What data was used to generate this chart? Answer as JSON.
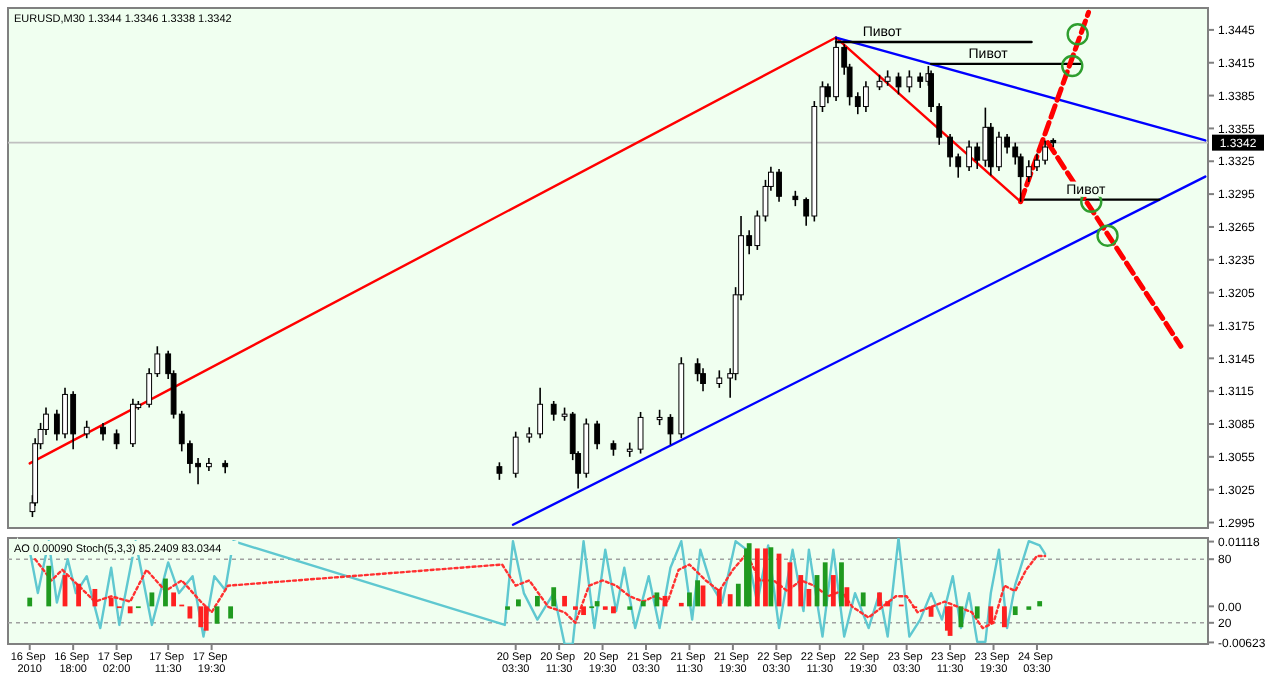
{
  "chart_data": [
    {
      "type": "candlestick",
      "title": "EURUSD,M30  1.3344 1.3346 1.3338 1.3342",
      "tick_labels": "y",
      "xlim": [
        "2010-09-16T06:00",
        "2010-09-25T11:00"
      ],
      "ylim": [
        1.299,
        1.3465
      ],
      "yticks": [
        1.2995,
        1.3025,
        1.3055,
        1.3085,
        1.3115,
        1.3145,
        1.3175,
        1.3205,
        1.3235,
        1.3265,
        1.3295,
        1.3325,
        1.3355,
        1.3385,
        1.3415,
        1.3445
      ],
      "x": [
        "2010-09-16T10:30",
        "2010-09-16T11:00",
        "2010-09-16T12:00",
        "2010-09-16T13:00",
        "2010-09-16T15:00",
        "2010-09-16T16:30",
        "2010-09-16T18:00",
        "2010-09-16T20:30",
        "2010-09-16T23:30",
        "2010-09-17T02:00",
        "2010-09-17T05:00",
        "2010-09-17T06:00",
        "2010-09-17T08:00",
        "2010-09-17T09:30",
        "2010-09-17T11:30",
        "2010-09-17T12:30",
        "2010-09-17T14:00",
        "2010-09-17T15:30",
        "2010-09-17T17:00",
        "2010-09-17T19:00",
        "2010-09-17T22:00",
        "2010-09-20T00:30",
        "2010-09-20T03:30",
        "2010-09-20T06:00",
        "2010-09-20T08:00",
        "2010-09-20T10:30",
        "2010-09-20T12:30",
        "2010-09-20T14:00",
        "2010-09-20T15:00",
        "2010-09-20T16:30",
        "2010-09-20T18:30",
        "2010-09-20T21:30",
        "2010-09-21T00:30",
        "2010-09-21T02:30",
        "2010-09-21T06:00",
        "2010-09-21T08:00",
        "2010-09-21T10:00",
        "2010-09-21T13:00",
        "2010-09-21T14:00",
        "2010-09-21T17:00",
        "2010-09-21T19:00",
        "2010-09-21T20:00",
        "2010-09-21T21:00",
        "2010-09-21T22:30",
        "2010-09-22T00:00",
        "2010-09-22T01:30",
        "2010-09-22T02:30",
        "2010-09-22T04:00",
        "2010-09-22T07:00",
        "2010-09-22T09:00",
        "2010-09-22T10:30",
        "2010-09-22T12:00",
        "2010-09-22T13:00",
        "2010-09-22T14:30",
        "2010-09-22T16:00",
        "2010-09-22T17:00",
        "2010-09-22T18:30",
        "2010-09-22T20:00",
        "2010-09-22T22:30",
        "2010-09-23T00:00",
        "2010-09-23T02:00",
        "2010-09-23T04:00",
        "2010-09-23T06:00",
        "2010-09-23T07:30",
        "2010-09-23T08:00",
        "2010-09-23T09:30",
        "2010-09-23T11:30",
        "2010-09-23T13:00",
        "2010-09-23T15:00",
        "2010-09-23T16:30",
        "2010-09-23T18:00",
        "2010-09-23T19:00",
        "2010-09-23T20:30",
        "2010-09-23T22:00",
        "2010-09-23T23:30",
        "2010-09-24T00:30",
        "2010-09-24T02:00",
        "2010-09-24T03:30",
        "2010-09-24T05:00",
        "2010-09-24T06:30"
      ],
      "ohlc": [
        [
          1.3005,
          1.302,
          1.3,
          1.3013
        ],
        [
          1.3013,
          1.3072,
          1.301,
          1.3067
        ],
        [
          1.3067,
          1.3086,
          1.3062,
          1.308
        ],
        [
          1.308,
          1.31,
          1.3075,
          1.3094
        ],
        [
          1.3094,
          1.3098,
          1.307,
          1.3076
        ],
        [
          1.3076,
          1.3118,
          1.3072,
          1.3112
        ],
        [
          1.3112,
          1.3115,
          1.3062,
          1.3076
        ],
        [
          1.3076,
          1.3088,
          1.3072,
          1.3082
        ],
        [
          1.3082,
          1.3086,
          1.307,
          1.3076
        ],
        [
          1.3076,
          1.308,
          1.3062,
          1.3067
        ],
        [
          1.3067,
          1.3108,
          1.3064,
          1.3103
        ],
        [
          1.31,
          1.3106,
          1.3098,
          1.3103
        ],
        [
          1.3103,
          1.3136,
          1.31,
          1.3131
        ],
        [
          1.3131,
          1.3156,
          1.3128,
          1.3149
        ],
        [
          1.3149,
          1.3152,
          1.3126,
          1.3131
        ],
        [
          1.3131,
          1.3134,
          1.309,
          1.3094
        ],
        [
          1.3094,
          1.3097,
          1.306,
          1.3067
        ],
        [
          1.3067,
          1.307,
          1.304,
          1.3049
        ],
        [
          1.3049,
          1.3054,
          1.303,
          1.3046
        ],
        [
          1.3046,
          1.3054,
          1.3042,
          1.3049
        ],
        [
          1.3049,
          1.3052,
          1.304,
          1.3046
        ],
        [
          1.3046,
          1.305,
          1.3034,
          1.304
        ],
        [
          1.304,
          1.3078,
          1.3036,
          1.3073
        ],
        [
          1.3073,
          1.3082,
          1.3068,
          1.3076
        ],
        [
          1.3076,
          1.3118,
          1.3072,
          1.3103
        ],
        [
          1.3103,
          1.3106,
          1.3088,
          1.3094
        ],
        [
          1.3092,
          1.31,
          1.3088,
          1.3094
        ],
        [
          1.3094,
          1.3096,
          1.3052,
          1.3058
        ],
        [
          1.3058,
          1.306,
          1.3026,
          1.304
        ],
        [
          1.304,
          1.309,
          1.3036,
          1.3085
        ],
        [
          1.3085,
          1.3088,
          1.3062,
          1.3067
        ],
        [
          1.3067,
          1.307,
          1.3056,
          1.3062
        ],
        [
          1.306,
          1.3068,
          1.3055,
          1.3062
        ],
        [
          1.3062,
          1.3096,
          1.3058,
          1.3091
        ],
        [
          1.3089,
          1.3098,
          1.3084,
          1.3091
        ],
        [
          1.3091,
          1.3094,
          1.3066,
          1.3076
        ],
        [
          1.3076,
          1.3146,
          1.3072,
          1.314
        ],
        [
          1.314,
          1.3145,
          1.3124,
          1.3131
        ],
        [
          1.3131,
          1.3136,
          1.3115,
          1.3122
        ],
        [
          1.3122,
          1.3134,
          1.3118,
          1.3127
        ],
        [
          1.3127,
          1.3136,
          1.3109,
          1.3131
        ],
        [
          1.3131,
          1.321,
          1.3125,
          1.3203
        ],
        [
          1.3203,
          1.3275,
          1.3198,
          1.3257
        ],
        [
          1.3257,
          1.3262,
          1.324,
          1.3248
        ],
        [
          1.3248,
          1.328,
          1.3244,
          1.3275
        ],
        [
          1.3275,
          1.3308,
          1.327,
          1.3302
        ],
        [
          1.3302,
          1.332,
          1.3298,
          1.3315
        ],
        [
          1.3315,
          1.3318,
          1.3288,
          1.3293
        ],
        [
          1.3293,
          1.3298,
          1.3284,
          1.329
        ],
        [
          1.329,
          1.3292,
          1.3266,
          1.3275
        ],
        [
          1.3275,
          1.338,
          1.327,
          1.3375
        ],
        [
          1.3375,
          1.3398,
          1.337,
          1.3393
        ],
        [
          1.3393,
          1.3396,
          1.3378,
          1.3384
        ],
        [
          1.3384,
          1.3438,
          1.338,
          1.3429
        ],
        [
          1.3429,
          1.3432,
          1.3404,
          1.3411
        ],
        [
          1.3411,
          1.3414,
          1.3376,
          1.3384
        ],
        [
          1.3384,
          1.3388,
          1.3368,
          1.3375
        ],
        [
          1.3375,
          1.3398,
          1.337,
          1.3393
        ],
        [
          1.3393,
          1.3404,
          1.339,
          1.3398
        ],
        [
          1.3398,
          1.3408,
          1.3394,
          1.3402
        ],
        [
          1.3402,
          1.3406,
          1.3386,
          1.3393
        ],
        [
          1.3393,
          1.3408,
          1.3388,
          1.3402
        ],
        [
          1.3402,
          1.3406,
          1.3392,
          1.3398
        ],
        [
          1.3398,
          1.3412,
          1.3394,
          1.3405
        ],
        [
          1.3405,
          1.3408,
          1.337,
          1.3375
        ],
        [
          1.3375,
          1.3378,
          1.334,
          1.3347
        ],
        [
          1.3347,
          1.335,
          1.332,
          1.3329
        ],
        [
          1.3329,
          1.3332,
          1.331,
          1.332
        ],
        [
          1.332,
          1.3344,
          1.3316,
          1.3338
        ],
        [
          1.3338,
          1.3342,
          1.3318,
          1.3326
        ],
        [
          1.3326,
          1.3374,
          1.332,
          1.3356
        ],
        [
          1.3356,
          1.336,
          1.3312,
          1.332
        ],
        [
          1.332,
          1.3352,
          1.3316,
          1.3347
        ],
        [
          1.3347,
          1.335,
          1.3332,
          1.3338
        ],
        [
          1.3338,
          1.3342,
          1.3322,
          1.3329
        ],
        [
          1.3329,
          1.3332,
          1.3288,
          1.3311
        ],
        [
          1.3311,
          1.3326,
          1.3306,
          1.332
        ],
        [
          1.332,
          1.3332,
          1.3316,
          1.3326
        ],
        [
          1.3326,
          1.3344,
          1.3322,
          1.3338
        ],
        [
          1.3344,
          1.3346,
          1.3338,
          1.3342
        ]
      ],
      "series": [
        {
          "type": "line",
          "color": "#ff0000",
          "x": [
            "2010-09-16T10:00",
            "2010-09-22T14:30"
          ],
          "values": [
            1.3049,
            1.3438
          ]
        },
        {
          "type": "line",
          "color": "#ff0000",
          "x": [
            "2010-09-22T14:30",
            "2010-09-24T00:30"
          ],
          "values": [
            1.3438,
            1.3288
          ]
        },
        {
          "type": "line",
          "color": "#0000ff",
          "x": [
            "2010-09-22T14:30",
            "2010-09-25T10:30"
          ],
          "values": [
            1.3438,
            1.3344
          ]
        },
        {
          "type": "line",
          "color": "#0000ff",
          "x": [
            "2010-09-20T03:00",
            "2010-09-25T10:30"
          ],
          "values": [
            1.2993,
            1.3311
          ]
        },
        {
          "type": "line",
          "color": "#000000",
          "x": [
            "2010-09-22T14:30",
            "2010-09-24T02:30"
          ],
          "values": [
            1.3434,
            1.3434
          ]
        },
        {
          "type": "line",
          "color": "#000000",
          "x": [
            "2010-09-23T08:00",
            "2010-09-24T11:30"
          ],
          "values": [
            1.3414,
            1.3414
          ]
        },
        {
          "type": "line",
          "color": "#000000",
          "x": [
            "2010-09-24T00:30",
            "2010-09-25T02:00"
          ],
          "values": [
            1.329,
            1.329
          ]
        },
        {
          "type": "line",
          "color": "#ff0000",
          "line_style": "dashed",
          "x": [
            "2010-09-24T00:30",
            "2010-09-24T13:00"
          ],
          "values": [
            1.3288,
            1.3461
          ]
        },
        {
          "type": "line",
          "color": "#ff0000",
          "line_style": "dashed",
          "x": [
            "2010-09-24T05:30",
            "2010-09-25T06:00"
          ],
          "values": [
            1.3342,
            1.3156
          ]
        },
        {
          "type": "scatter",
          "color": "#2e9e2e",
          "marker": "circle",
          "x": [
            "2010-09-24T11:00",
            "2010-09-24T10:00",
            "2010-09-24T13:30",
            "2010-09-24T16:30"
          ],
          "values": [
            1.3441,
            1.3412,
            1.3288,
            1.3257
          ]
        }
      ],
      "ref_lines": [
        {
          "axis": "y",
          "value": 1.3342,
          "label": "1.3342",
          "color": "#c0c0c0"
        }
      ],
      "annotations": [
        {
          "text": "Пивот",
          "x": "2010-09-22T23:00",
          "y": 1.3434
        },
        {
          "text": "Пивот",
          "x": "2010-09-23T18:30",
          "y": 1.3414
        },
        {
          "text": "Пивот",
          "x": "2010-09-24T12:30",
          "y": 1.329
        }
      ]
    },
    {
      "type": "bar",
      "title": "AO 0.00090 Stoch(5,3,3) 85.2409 83.0344",
      "xlim": [
        "2010-09-16T06:00",
        "2010-09-25T11:00"
      ],
      "ylim": [
        -0.0065,
        0.0118
      ],
      "yticks": [
        {
          "value": 0.01118,
          "label": "0.01118"
        },
        {
          "value": 0,
          "label": "0.00"
        },
        {
          "value": -0.00623,
          "label": "-0.00623"
        }
      ],
      "y2lim": [
        0,
        100
      ],
      "y2ticks": [
        20,
        80
      ],
      "xticks": [
        {
          "value": "2010-09-16T10:00",
          "label": "16 Sep 2010"
        },
        {
          "value": "2010-09-16T18:00",
          "label": "16 Sep 18:00"
        },
        {
          "value": "2010-09-17T02:00",
          "label": "17 Sep 02:00"
        },
        {
          "value": "2010-09-17T11:30",
          "label": "17 Sep 11:30"
        },
        {
          "value": "2010-09-17T19:30",
          "label": "17 Sep 19:30"
        },
        {
          "value": "2010-09-20T03:30",
          "label": "20 Sep 03:30"
        },
        {
          "value": "2010-09-20T11:30",
          "label": "20 Sep 11:30"
        },
        {
          "value": "2010-09-20T19:30",
          "label": "20 Sep 19:30"
        },
        {
          "value": "2010-09-21T03:30",
          "label": "21 Sep 03:30"
        },
        {
          "value": "2010-09-21T11:30",
          "label": "21 Sep 11:30"
        },
        {
          "value": "2010-09-21T19:30",
          "label": "21 Sep 19:30"
        },
        {
          "value": "2010-09-22T03:30",
          "label": "22 Sep 03:30"
        },
        {
          "value": "2010-09-22T11:30",
          "label": "22 Sep 11:30"
        },
        {
          "value": "2010-09-22T19:30",
          "label": "22 Sep 19:30"
        },
        {
          "value": "2010-09-23T03:30",
          "label": "23 Sep 03:30"
        },
        {
          "value": "2010-09-23T11:30",
          "label": "23 Sep 11:30"
        },
        {
          "value": "2010-09-23T19:30",
          "label": "23 Sep 19:30"
        },
        {
          "value": "2010-09-24T03:30",
          "label": "24 Sep 03:30"
        }
      ],
      "ref_lines": [
        {
          "axis": "y2",
          "value": 80,
          "color": "#a0a0a0"
        },
        {
          "axis": "y2",
          "value": 20,
          "color": "#a0a0a0"
        }
      ],
      "series": [
        {
          "type": "bar",
          "x": [
            "2010-09-16T10:00",
            "2010-09-16T13:30",
            "2010-09-16T16:30",
            "2010-09-16T19:00",
            "2010-09-16T22:00",
            "2010-09-17T01:00",
            "2010-09-17T02:30",
            "2010-09-17T04:30",
            "2010-09-17T06:00",
            "2010-09-17T08:30",
            "2010-09-17T11:00",
            "2010-09-17T12:30",
            "2010-09-17T14:00",
            "2010-09-17T15:30",
            "2010-09-17T17:30",
            "2010-09-17T18:30",
            "2010-09-17T20:30",
            "2010-09-17T23:00",
            "2010-09-20T02:00",
            "2010-09-20T04:00",
            "2010-09-20T07:30",
            "2010-09-20T10:30",
            "2010-09-20T12:30",
            "2010-09-20T14:30",
            "2010-09-20T16:00",
            "2010-09-20T17:30",
            "2010-09-20T18:30",
            "2010-09-20T20:00",
            "2010-09-20T21:30",
            "2010-09-21T00:30",
            "2010-09-21T03:00",
            "2010-09-21T05:30",
            "2010-09-21T07:00",
            "2010-09-21T10:00",
            "2010-09-21T11:30",
            "2010-09-21T13:00",
            "2010-09-21T14:00",
            "2010-09-21T17:00",
            "2010-09-21T19:00",
            "2010-09-21T20:30",
            "2010-09-21T22:00",
            "2010-09-21T22:30",
            "2010-09-22T00:00",
            "2010-09-22T01:30",
            "2010-09-22T02:30",
            "2010-09-22T04:00",
            "2010-09-22T06:00",
            "2010-09-22T08:00",
            "2010-09-22T09:30",
            "2010-09-22T11:00",
            "2010-09-22T12:30",
            "2010-09-22T14:00",
            "2010-09-22T15:30",
            "2010-09-22T16:30",
            "2010-09-22T19:30",
            "2010-09-22T22:30",
            "2010-09-23T00:00",
            "2010-09-23T02:30",
            "2010-09-23T05:00",
            "2010-09-23T08:00",
            "2010-09-23T11:00",
            "2010-09-23T11:30",
            "2010-09-23T13:30",
            "2010-09-23T16:30",
            "2010-09-23T19:00",
            "2010-09-23T21:30",
            "2010-09-23T23:30",
            "2010-09-24T02:00",
            "2010-09-24T04:00"
          ],
          "values": [
            0.0015,
            0.007,
            0.0054,
            0.0039,
            0.003,
            0.0015,
            -0.0003,
            -0.0012,
            -0.0003,
            0.0024,
            0.0048,
            0.0024,
            0.0003,
            -0.0021,
            -0.0036,
            -0.0042,
            -0.003,
            -0.0021,
            -0.0006,
            0.0012,
            0.0018,
            0.0033,
            0.0018,
            -0.0006,
            -0.0015,
            -0.0003,
            0.0009,
            -0.0006,
            -0.0012,
            -0.0006,
            0.0009,
            0.0024,
            0.0018,
            0.0006,
            0.0024,
            0.0045,
            0.0036,
            0.003,
            0.0021,
            0.0039,
            0.01,
            0.0109,
            0.01,
            0.01,
            0.0102,
            0.0091,
            0.0076,
            0.0054,
            0.003,
            0.0054,
            0.0076,
            0.0054,
            0.0076,
            0.0033,
            0.0024,
            0.0024,
            0.0009,
            0.0003,
            -0.0003,
            -0.0018,
            -0.0042,
            -0.0051,
            -0.0036,
            -0.0021,
            -0.003,
            -0.0036,
            -0.0015,
            -0.0006,
            0.0009
          ],
          "colors": [
            "#1f9a1f",
            "#1f9a1f",
            "#ff2020",
            "#ff2020",
            "#ff2020",
            "#ff2020",
            "#ff2020",
            "#ff2020",
            "#1f9a1f",
            "#1f9a1f",
            "#1f9a1f",
            "#ff2020",
            "#ff2020",
            "#ff2020",
            "#ff2020",
            "#ff2020",
            "#1f9a1f",
            "#1f9a1f",
            "#1f9a1f",
            "#1f9a1f",
            "#1f9a1f",
            "#1f9a1f",
            "#ff2020",
            "#ff2020",
            "#ff2020",
            "#1f9a1f",
            "#1f9a1f",
            "#ff2020",
            "#ff2020",
            "#1f9a1f",
            "#1f9a1f",
            "#1f9a1f",
            "#ff2020",
            "#ff2020",
            "#1f9a1f",
            "#1f9a1f",
            "#ff2020",
            "#ff2020",
            "#ff2020",
            "#1f9a1f",
            "#1f9a1f",
            "#1f9a1f",
            "#ff2020",
            "#ff2020",
            "#1f9a1f",
            "#ff2020",
            "#ff2020",
            "#ff2020",
            "#ff2020",
            "#1f9a1f",
            "#1f9a1f",
            "#ff2020",
            "#1f9a1f",
            "#ff2020",
            "#1f9a1f",
            "#ff2020",
            "#ff2020",
            "#ff2020",
            "#ff2020",
            "#ff2020",
            "#ff2020",
            "#ff2020",
            "#1f9a1f",
            "#1f9a1f",
            "#ff2020",
            "#ff2020",
            "#1f9a1f",
            "#1f9a1f",
            "#1f9a1f"
          ]
        },
        {
          "type": "line",
          "axis": "y2",
          "color": "#5fc8d0",
          "x": [
            "2010-09-16T10:00",
            "2010-09-16T11:30",
            "2010-09-16T13:30",
            "2010-09-16T15:00",
            "2010-09-16T17:00",
            "2010-09-16T18:30",
            "2010-09-16T20:30",
            "2010-09-16T23:00",
            "2010-09-17T01:00",
            "2010-09-17T02:30",
            "2010-09-17T05:30",
            "2010-09-17T08:30",
            "2010-09-17T11:30",
            "2010-09-17T13:30",
            "2010-09-17T16:00",
            "2010-09-17T18:00",
            "2010-09-17T20:00",
            "2010-09-17T22:00",
            "2010-09-17T23:30",
            "2010-09-20T01:30",
            "2010-09-20T03:00",
            "2010-09-20T05:00",
            "2010-09-20T07:30",
            "2010-09-20T10:30",
            "2010-09-20T12:30",
            "2010-09-20T14:00",
            "2010-09-20T16:00",
            "2010-09-20T18:00",
            "2010-09-20T20:00",
            "2010-09-20T22:00",
            "2010-09-20T23:30",
            "2010-09-21T01:30",
            "2010-09-21T04:00",
            "2010-09-21T06:00",
            "2010-09-21T08:00",
            "2010-09-21T10:00",
            "2010-09-21T12:00",
            "2010-09-21T13:30",
            "2010-09-21T15:30",
            "2010-09-21T17:30",
            "2010-09-21T20:00",
            "2010-09-21T22:00",
            "2010-09-22T00:00",
            "2010-09-22T02:00",
            "2010-09-22T04:00",
            "2010-09-22T06:30",
            "2010-09-22T08:30",
            "2010-09-22T09:30",
            "2010-09-22T12:00",
            "2010-09-22T14:00",
            "2010-09-22T16:00",
            "2010-09-22T18:00",
            "2010-09-22T20:30",
            "2010-09-22T22:30",
            "2010-09-23T00:00",
            "2010-09-23T02:00",
            "2010-09-23T04:00",
            "2010-09-23T06:00",
            "2010-09-23T08:00",
            "2010-09-23T10:00",
            "2010-09-23T12:00",
            "2010-09-23T13:30",
            "2010-09-23T15:00",
            "2010-09-23T16:30",
            "2010-09-23T18:00",
            "2010-09-23T19:00",
            "2010-09-23T20:30",
            "2010-09-23T22:00",
            "2010-09-23T23:30",
            "2010-09-24T02:00",
            "2010-09-24T04:00",
            "2010-09-24T05:00"
          ],
          "values": [
            88,
            48,
            97,
            39,
            80,
            48,
            64,
            15,
            72,
            18,
            97,
            18,
            77,
            48,
            64,
            7,
            64,
            51,
            97,
            18,
            97,
            48,
            23,
            48,
            0,
            0,
            97,
            15,
            89,
            31,
            72,
            15,
            64,
            15,
            72,
            97,
            23,
            89,
            56,
            39,
            97,
            89,
            39,
            93,
            15,
            89,
            31,
            89,
            7,
            89,
            7,
            48,
            15,
            48,
            7,
            100,
            7,
            23,
            48,
            23,
            64,
            15,
            48,
            2,
            2,
            48,
            89,
            15,
            56,
            97,
            93,
            85
          ]
        },
        {
          "type": "line",
          "axis": "y2",
          "color": "#ff3030",
          "line_style": "dotted",
          "x": [
            "2010-09-16T11:00",
            "2010-09-16T14:00",
            "2010-09-16T16:00",
            "2010-09-16T19:00",
            "2010-09-16T22:00",
            "2010-09-17T01:00",
            "2010-09-17T04:30",
            "2010-09-17T07:30",
            "2010-09-17T11:00",
            "2010-09-17T14:00",
            "2010-09-17T17:30",
            "2010-09-17T19:30",
            "2010-09-17T22:30",
            "2010-09-20T01:00",
            "2010-09-20T03:30",
            "2010-09-20T06:00",
            "2010-09-20T09:30",
            "2010-09-20T12:30",
            "2010-09-20T14:30",
            "2010-09-20T17:00",
            "2010-09-20T19:30",
            "2010-09-20T22:00",
            "2010-09-21T00:30",
            "2010-09-21T03:00",
            "2010-09-21T05:00",
            "2010-09-21T07:30",
            "2010-09-21T09:30",
            "2010-09-21T11:30",
            "2010-09-21T14:30",
            "2010-09-21T17:00",
            "2010-09-21T19:30",
            "2010-09-21T22:00",
            "2010-09-22T00:30",
            "2010-09-22T03:00",
            "2010-09-22T05:30",
            "2010-09-22T08:00",
            "2010-09-22T10:30",
            "2010-09-22T13:00",
            "2010-09-22T15:30",
            "2010-09-22T17:30",
            "2010-09-22T20:30",
            "2010-09-22T23:00",
            "2010-09-23T01:30",
            "2010-09-23T03:30",
            "2010-09-23T05:30",
            "2010-09-23T08:00",
            "2010-09-23T10:30",
            "2010-09-23T13:00",
            "2010-09-23T15:30",
            "2010-09-23T17:30",
            "2010-09-23T19:30",
            "2010-09-23T21:30",
            "2010-09-23T23:30",
            "2010-09-24T01:30",
            "2010-09-24T03:30",
            "2010-09-24T05:00"
          ],
          "values": [
            80,
            60,
            70,
            55,
            40,
            45,
            40,
            70,
            50,
            60,
            40,
            30,
            55,
            75,
            55,
            60,
            35,
            30,
            20,
            55,
            60,
            55,
            45,
            40,
            45,
            40,
            70,
            75,
            60,
            50,
            70,
            85,
            60,
            60,
            50,
            60,
            55,
            45,
            50,
            35,
            25,
            35,
            45,
            45,
            30,
            35,
            40,
            35,
            30,
            15,
            20,
            55,
            50,
            70,
            83,
            83
          ]
        }
      ]
    }
  ]
}
